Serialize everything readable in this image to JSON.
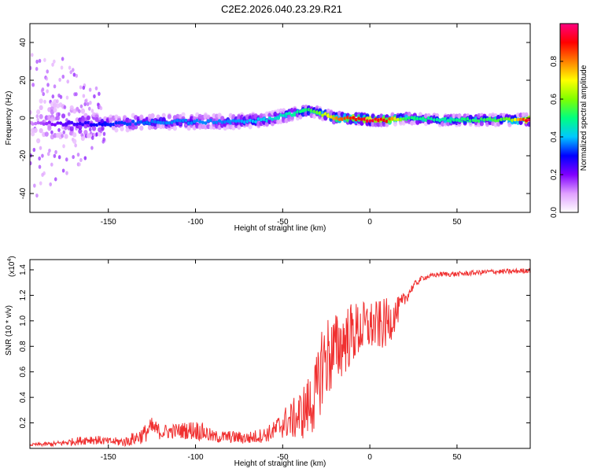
{
  "figure_title": "C2E2.2026.040.23.29.R21",
  "chart_data": [
    {
      "type": "heatmap",
      "panel": "spectrogram",
      "xlabel": "Height of straight line (km)",
      "ylabel": "Frequency (Hz)",
      "xlim": [
        -195,
        92
      ],
      "ylim": [
        -50,
        50
      ],
      "xticks": [
        -150,
        -100,
        -50,
        0,
        50
      ],
      "xtick_labels": [
        "-150",
        "-100",
        "-50",
        "0",
        "50"
      ],
      "yticks": [
        -40,
        -20,
        0,
        20,
        40
      ],
      "ytick_labels": [
        "-40",
        "-20",
        "0",
        "20",
        "40"
      ],
      "colorbar": {
        "label": "Normalized spectral amplitude",
        "range": [
          0,
          1
        ],
        "ticks": [
          0.0,
          0.2,
          0.4,
          0.6,
          0.8
        ],
        "tick_labels": [
          "0.0",
          "0.2",
          "0.4",
          "0.6",
          "0.8"
        ],
        "colormap": [
          "#ffffff",
          "#e0a0ff",
          "#8000ff",
          "#0000ff",
          "#00c8ff",
          "#00ff80",
          "#80ff00",
          "#ffff00",
          "#ff8000",
          "#ff0000",
          "#ff0080"
        ]
      },
      "ridge": {
        "x": [
          -195,
          -180,
          -150,
          -120,
          -100,
          -80,
          -60,
          -45,
          -35,
          -30,
          -20,
          -10,
          0,
          10,
          20,
          40,
          60,
          80,
          92
        ],
        "freq": [
          -3,
          -3,
          -3,
          -2,
          -2,
          -2,
          -1,
          2,
          4,
          3,
          0,
          0,
          -1,
          -1,
          0,
          -1,
          -1,
          -1,
          -1
        ],
        "amplitude": [
          0.1,
          0.2,
          0.3,
          0.35,
          0.35,
          0.35,
          0.4,
          0.45,
          0.5,
          0.55,
          0.75,
          0.85,
          0.9,
          0.85,
          0.5,
          0.45,
          0.5,
          0.55,
          0.95
        ]
      },
      "spread_hz": {
        "x": [
          -195,
          -180,
          -150,
          -100,
          -60,
          -40,
          -30,
          -20,
          0,
          50,
          92
        ],
        "halfwidth": [
          45,
          35,
          10,
          9,
          8,
          7,
          6,
          4,
          3,
          3,
          2.5
        ]
      }
    },
    {
      "type": "line",
      "panel": "snr",
      "xlabel": "Height of straight line (km)",
      "ylabel": "SNR (10 * v/v)",
      "exponent_label": "(x10",
      "exponent_power": "4",
      "exponent_close": ")",
      "xlim": [
        -195,
        92
      ],
      "ylim": [
        0,
        1.48
      ],
      "xticks": [
        -150,
        -100,
        -50,
        0,
        50
      ],
      "xtick_labels": [
        "-150",
        "-100",
        "-50",
        "0",
        "50"
      ],
      "yticks": [
        0.2,
        0.4,
        0.6,
        0.8,
        1.0,
        1.2,
        1.4
      ],
      "ytick_labels": [
        "0.2",
        "0.4",
        "0.6",
        "0.8",
        "1.0",
        "1.2",
        "1.4"
      ],
      "color": "#f03030",
      "series": [
        {
          "name": "SNR",
          "x": [
            -195,
            -180,
            -170,
            -160,
            -150,
            -140,
            -130,
            -125,
            -120,
            -110,
            -100,
            -95,
            -90,
            -80,
            -70,
            -60,
            -55,
            -50,
            -45,
            -40,
            -35,
            -30,
            -28,
            -25,
            -20,
            -15,
            -10,
            -5,
            0,
            5,
            10,
            15,
            20,
            25,
            30,
            40,
            50,
            60,
            70,
            80,
            92
          ],
          "y": [
            0.03,
            0.04,
            0.06,
            0.08,
            0.06,
            0.06,
            0.12,
            0.18,
            0.14,
            0.15,
            0.16,
            0.14,
            0.1,
            0.1,
            0.09,
            0.12,
            0.15,
            0.22,
            0.25,
            0.3,
            0.38,
            0.5,
            0.72,
            0.78,
            0.82,
            0.9,
            0.95,
            0.98,
            1.0,
            1.0,
            1.02,
            1.08,
            1.18,
            1.28,
            1.34,
            1.37,
            1.37,
            1.38,
            1.39,
            1.39,
            1.4
          ],
          "noise": [
            0.01,
            0.02,
            0.03,
            0.04,
            0.03,
            0.04,
            0.07,
            0.08,
            0.06,
            0.06,
            0.08,
            0.07,
            0.05,
            0.05,
            0.05,
            0.06,
            0.08,
            0.12,
            0.15,
            0.2,
            0.25,
            0.3,
            0.35,
            0.35,
            0.3,
            0.28,
            0.25,
            0.22,
            0.2,
            0.2,
            0.2,
            0.12,
            0.06,
            0.03,
            0.02,
            0.02,
            0.02,
            0.02,
            0.02,
            0.02,
            0.02
          ]
        }
      ]
    }
  ]
}
